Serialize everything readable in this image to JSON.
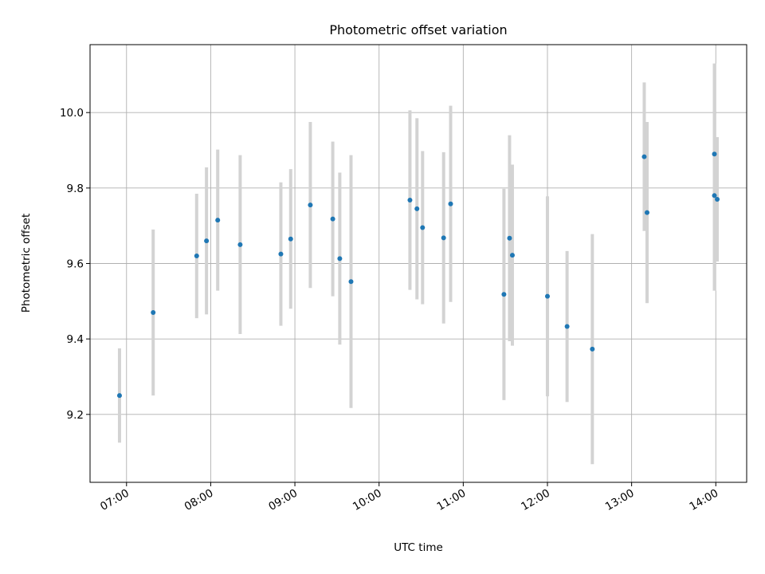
{
  "chart_data": {
    "type": "scatter",
    "title": "Photometric offset variation",
    "xlabel": "UTC time",
    "ylabel": "Photometric offset",
    "x_ticks": [
      "07:00",
      "08:00",
      "09:00",
      "10:00",
      "11:00",
      "12:00",
      "13:00",
      "14:00"
    ],
    "y_ticks": [
      "9.2",
      "9.4",
      "9.6",
      "9.8",
      "10.0"
    ],
    "xlim": [
      "06:34",
      "14:22"
    ],
    "ylim": [
      9.02,
      10.18
    ],
    "grid": true,
    "colors": {
      "point": "#1f77b4",
      "errorbar": "#d3d3d3"
    },
    "points": [
      {
        "x": "06:55",
        "y": 9.25,
        "err": 0.125
      },
      {
        "x": "07:19",
        "y": 9.47,
        "err": 0.22
      },
      {
        "x": "07:50",
        "y": 9.62,
        "err": 0.165
      },
      {
        "x": "07:57",
        "y": 9.66,
        "err": 0.195
      },
      {
        "x": "08:05",
        "y": 9.715,
        "err": 0.187
      },
      {
        "x": "08:21",
        "y": 9.65,
        "err": 0.237
      },
      {
        "x": "08:50",
        "y": 9.625,
        "err": 0.19
      },
      {
        "x": "08:57",
        "y": 9.665,
        "err": 0.185
      },
      {
        "x": "09:11",
        "y": 9.755,
        "err": 0.22
      },
      {
        "x": "09:27",
        "y": 9.718,
        "err": 0.205
      },
      {
        "x": "09:32",
        "y": 9.613,
        "err": 0.228
      },
      {
        "x": "09:40",
        "y": 9.552,
        "err": 0.335
      },
      {
        "x": "10:22",
        "y": 9.768,
        "err": 0.238
      },
      {
        "x": "10:27",
        "y": 9.745,
        "err": 0.24
      },
      {
        "x": "10:31",
        "y": 9.695,
        "err": 0.203
      },
      {
        "x": "10:46",
        "y": 9.668,
        "err": 0.227
      },
      {
        "x": "10:51",
        "y": 9.758,
        "err": 0.26
      },
      {
        "x": "11:29",
        "y": 9.518,
        "err": 0.28
      },
      {
        "x": "11:33",
        "y": 9.667,
        "err": 0.273
      },
      {
        "x": "11:35",
        "y": 9.622,
        "err": 0.24
      },
      {
        "x": "12:00",
        "y": 9.513,
        "err": 0.265
      },
      {
        "x": "12:14",
        "y": 9.433,
        "err": 0.2
      },
      {
        "x": "12:32",
        "y": 9.373,
        "err": 0.305
      },
      {
        "x": "13:09",
        "y": 9.883,
        "err": 0.197
      },
      {
        "x": "13:11",
        "y": 9.735,
        "err": 0.24
      },
      {
        "x": "13:59",
        "y": 9.78,
        "err": 0.252
      },
      {
        "x": "13:59",
        "y": 9.89,
        "err": 0.24
      },
      {
        "x": "14:01",
        "y": 9.77,
        "err": 0.165
      }
    ]
  }
}
